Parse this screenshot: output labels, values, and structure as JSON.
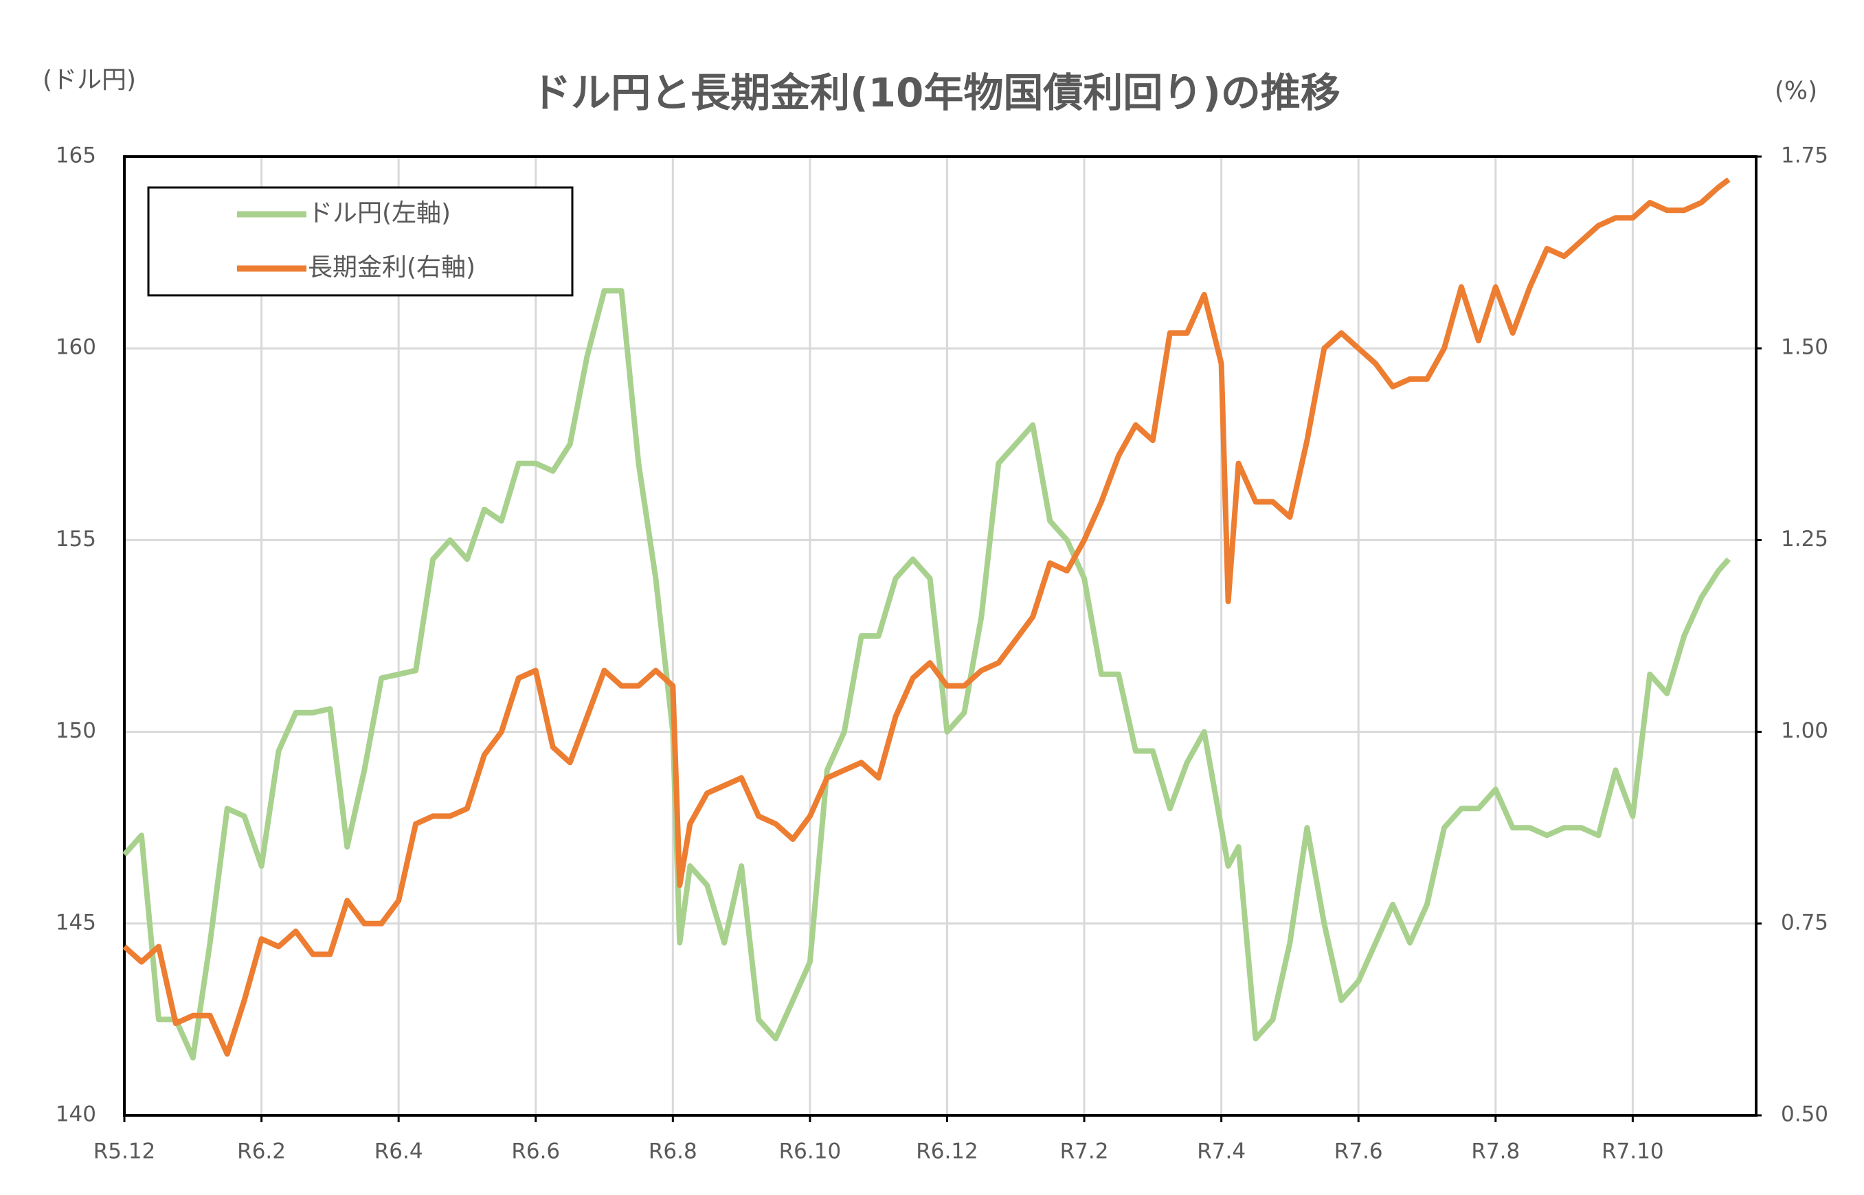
{
  "chart_data": {
    "type": "line",
    "title": "ドル円と長期金利(10年物国債利回り)の推移",
    "y_label": "(ドル円)",
    "y2_label": "(%)",
    "x": [
      0,
      0.25,
      0.5,
      0.75,
      1,
      1.25,
      1.5,
      1.75,
      2,
      2.25,
      2.5,
      2.75,
      3,
      3.25,
      3.5,
      3.75,
      4,
      4.25,
      4.5,
      4.75,
      5,
      5.25,
      5.5,
      5.75,
      6,
      6.25,
      6.5,
      6.75,
      7,
      7.25,
      7.5,
      7.75,
      8,
      8.1,
      8.25,
      8.5,
      8.75,
      9,
      9.25,
      9.5,
      9.75,
      10,
      10.25,
      10.5,
      10.75,
      11,
      11.25,
      11.5,
      11.75,
      12,
      12.25,
      12.5,
      12.75,
      13,
      13.25,
      13.5,
      13.75,
      14,
      14.25,
      14.5,
      14.75,
      15,
      15.25,
      15.5,
      15.75,
      16,
      16.1,
      16.25,
      16.5,
      16.75,
      17,
      17.25,
      17.5,
      17.75,
      18,
      18.25,
      18.5,
      18.75,
      19,
      19.25,
      19.5,
      19.75,
      20,
      20.25,
      20.5,
      20.75,
      21,
      21.25,
      21.5,
      21.75,
      22,
      22.25,
      22.5,
      22.75,
      23,
      23.25,
      23.4
    ],
    "xlim": [
      0,
      23.8
    ],
    "xticks": [
      {
        "value": 0,
        "label": "R5.12"
      },
      {
        "value": 2,
        "label": "R6.2"
      },
      {
        "value": 4,
        "label": "R6.4"
      },
      {
        "value": 6,
        "label": "R6.6"
      },
      {
        "value": 8,
        "label": "R6.8"
      },
      {
        "value": 10,
        "label": "R6.10"
      },
      {
        "value": 12,
        "label": "R6.12"
      },
      {
        "value": 14,
        "label": "R7.2"
      },
      {
        "value": 16,
        "label": "R7.4"
      },
      {
        "value": 18,
        "label": "R7.6"
      },
      {
        "value": 20,
        "label": "R7.8"
      },
      {
        "value": 22,
        "label": "R7.10"
      }
    ],
    "ylim": [
      140,
      165
    ],
    "yticks": [
      140,
      145,
      150,
      155,
      160,
      165
    ],
    "y2lim": [
      0.5,
      1.75
    ],
    "y2ticks": [
      {
        "value": 0.5,
        "label": "0.50"
      },
      {
        "value": 0.75,
        "label": "0.75"
      },
      {
        "value": 1.0,
        "label": "1.00"
      },
      {
        "value": 1.25,
        "label": "1.25"
      },
      {
        "value": 1.5,
        "label": "1.50"
      },
      {
        "value": 1.75,
        "label": "1.75"
      }
    ],
    "grid": true,
    "legend": "upper left",
    "series": [
      {
        "name": "ドル円(左軸)",
        "color": "#a9d18e",
        "values": [
          146.8,
          147.3,
          142.5,
          142.5,
          141.5,
          144.5,
          148,
          147.8,
          146.5,
          149.5,
          150.5,
          150.5,
          150.6,
          147,
          149,
          151.4,
          151.5,
          151.6,
          154.5,
          155,
          154.5,
          155.8,
          155.5,
          157,
          157,
          156.8,
          157.5,
          159.8,
          161.5,
          161.5,
          157,
          154,
          150,
          144.5,
          146.5,
          146,
          144.5,
          146.5,
          142.5,
          142,
          143,
          144,
          149,
          150,
          152.5,
          152.5,
          154,
          154.5,
          154,
          150,
          150.5,
          153,
          157,
          157.5,
          158,
          155.5,
          155,
          154,
          151.5,
          151.5,
          149.5,
          149.5,
          148,
          149.2,
          150,
          147.5,
          146.5,
          147,
          142,
          142.5,
          144.5,
          147.5,
          145,
          143,
          143.5,
          144.5,
          145.5,
          144.5,
          145.5,
          147.5,
          148,
          148,
          148.5,
          147.5,
          147.5,
          147.3,
          147.5,
          147.5,
          147.3,
          149,
          147.8,
          151.5,
          151,
          152.5,
          153.5,
          154.2,
          154.5
        ]
      },
      {
        "name": "長期金利(右軸)",
        "color": "#ed7d31",
        "axis": "y2",
        "values": [
          0.72,
          0.7,
          0.72,
          0.62,
          0.63,
          0.63,
          0.58,
          0.65,
          0.73,
          0.72,
          0.74,
          0.71,
          0.71,
          0.78,
          0.75,
          0.75,
          0.78,
          0.88,
          0.89,
          0.89,
          0.9,
          0.97,
          1.0,
          1.07,
          1.08,
          0.98,
          0.96,
          1.02,
          1.08,
          1.06,
          1.06,
          1.08,
          1.06,
          0.8,
          0.88,
          0.92,
          0.93,
          0.94,
          0.89,
          0.88,
          0.86,
          0.89,
          0.94,
          0.95,
          0.96,
          0.94,
          1.02,
          1.07,
          1.09,
          1.06,
          1.06,
          1.08,
          1.09,
          1.12,
          1.15,
          1.22,
          1.21,
          1.25,
          1.3,
          1.36,
          1.4,
          1.38,
          1.52,
          1.52,
          1.57,
          1.48,
          1.17,
          1.35,
          1.3,
          1.3,
          1.28,
          1.38,
          1.5,
          1.52,
          1.5,
          1.48,
          1.45,
          1.46,
          1.46,
          1.5,
          1.58,
          1.51,
          1.58,
          1.52,
          1.58,
          1.63,
          1.62,
          1.64,
          1.66,
          1.67,
          1.67,
          1.69,
          1.68,
          1.68,
          1.69,
          1.71,
          1.72
        ]
      }
    ]
  }
}
